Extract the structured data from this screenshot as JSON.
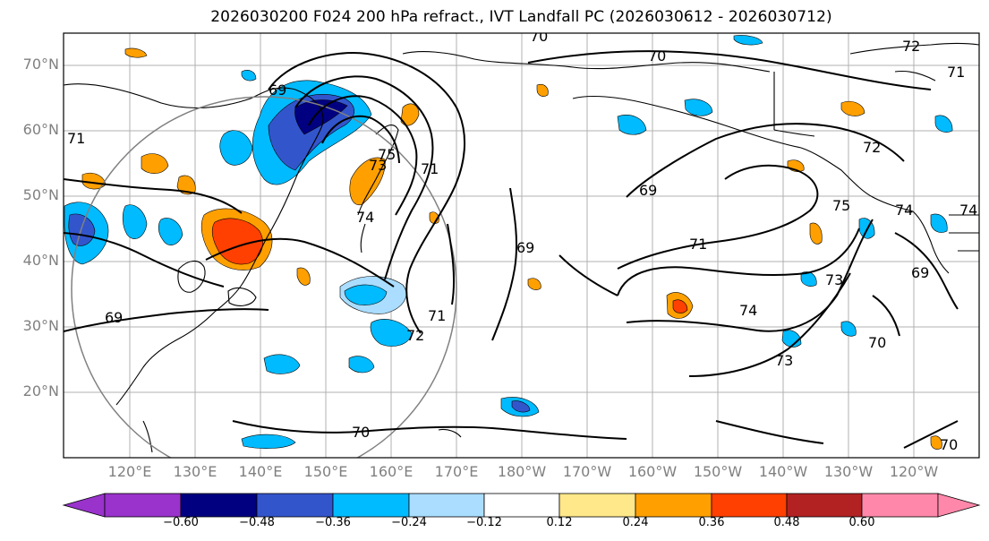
{
  "title": "2026030200 F024 200 hPa refract., IVT Landfall PC (2026030612 - 2026030712)",
  "latitude_labels": [
    "70°N",
    "60°N",
    "50°N",
    "40°N",
    "30°N",
    "20°N"
  ],
  "longitude_labels": [
    "120°E",
    "130°E",
    "140°E",
    "150°E",
    "160°E",
    "170°E",
    "180°W",
    "170°W",
    "160°W",
    "150°W",
    "140°W",
    "130°W",
    "120°W"
  ],
  "colorbar": {
    "tick_labels": [
      "−0.60",
      "−0.48",
      "−0.36",
      "−0.24",
      "−0.12",
      "0.12",
      "0.24",
      "0.36",
      "0.48",
      "0.60"
    ],
    "colors": [
      "#9933cc",
      "#000080",
      "#3355cc",
      "#00bbff",
      "#aaddff",
      "#ffffff",
      "#ffe88a",
      "#ffa000",
      "#ff4000",
      "#b22222",
      "#ff88aa"
    ]
  },
  "contour_labels": [
    "70",
    "72",
    "70",
    "71",
    "69",
    "71",
    "73",
    "75",
    "74",
    "72",
    "75",
    "74",
    "74",
    "69",
    "71",
    "69",
    "71",
    "69",
    "73",
    "71",
    "74",
    "73",
    "70",
    "69",
    "72",
    "70",
    "70"
  ]
}
